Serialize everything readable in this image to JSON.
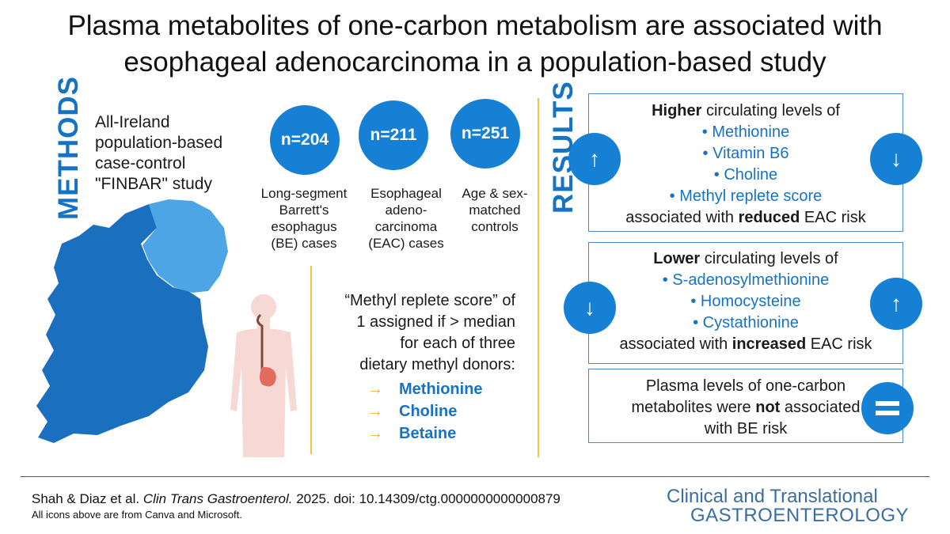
{
  "title": {
    "line1": "Plasma metabolites of one-carbon metabolism are associated with",
    "line2": "esophageal adenocarcinoma in a population-based study"
  },
  "methods": {
    "label": "METHODS",
    "study": [
      "All-Ireland",
      "population-based",
      "case-control",
      "\"FINBAR\" study"
    ],
    "map_icon": "ireland-map-icon",
    "body_icon": "human-esophagus-stomach-icon",
    "groups": [
      {
        "count": "n=204",
        "label": [
          "Long-segment",
          "Barrett's",
          "esophagus",
          "(BE) cases"
        ]
      },
      {
        "count": "n=211",
        "label": [
          "Esophageal",
          "adeno-",
          "carcinoma",
          "(EAC) cases"
        ]
      },
      {
        "count": "n=251",
        "label": [
          "Age & sex-",
          "matched",
          "controls"
        ]
      }
    ],
    "score": {
      "lines": [
        "“Methyl replete score” of",
        "1 assigned if > median",
        "for each of three",
        "dietary methyl donors:"
      ],
      "arrow_glyph": "→",
      "donors": [
        "Methionine",
        "Choline",
        "Betaine"
      ]
    }
  },
  "results": {
    "label": "RESULTS",
    "higher": {
      "bold": "Higher",
      "rest": " circulating levels of",
      "items": [
        "•  Methionine",
        "•  Vitamin B6",
        "•  Choline",
        "•  Methyl replete score"
      ],
      "tail_pre": "associated with ",
      "tail_bold": "reduced",
      "tail_post": " EAC risk",
      "left_arrow": "↑",
      "right_arrow": "↓"
    },
    "lower": {
      "bold": "Lower",
      "rest": " circulating levels of",
      "items": [
        "•  S-adenosylmethionine",
        "•  Homocysteine",
        "•  Cystathionine"
      ],
      "tail_pre": "associated with ",
      "tail_bold": "increased",
      "tail_post": " EAC risk",
      "left_arrow": "↓",
      "right_arrow": "↑"
    },
    "be": {
      "line1": "Plasma levels of one-carbon",
      "line2_pre": "metabolites were ",
      "line2_bold": "not",
      "line2_post": " associated",
      "line3": "with BE risk"
    }
  },
  "footer": {
    "authors": "Shah & Diaz et al. ",
    "journal_abbrev": "Clin Trans Gastroenterol.",
    "rest": " 2025. doi: 10.14309/ctg.0000000000000879",
    "note": "All icons above are from Canva and Microsoft.",
    "journal_line1": "Clinical and Translational",
    "journal_line2": "GASTROENTEROLOGY"
  },
  "colors": {
    "accent": "#1580d4",
    "heading": "#1673c4",
    "divider": "#f0c44c",
    "map_dark": "#1b6fbf",
    "map_light": "#4ea5e6",
    "arrow": "#f2b233"
  }
}
